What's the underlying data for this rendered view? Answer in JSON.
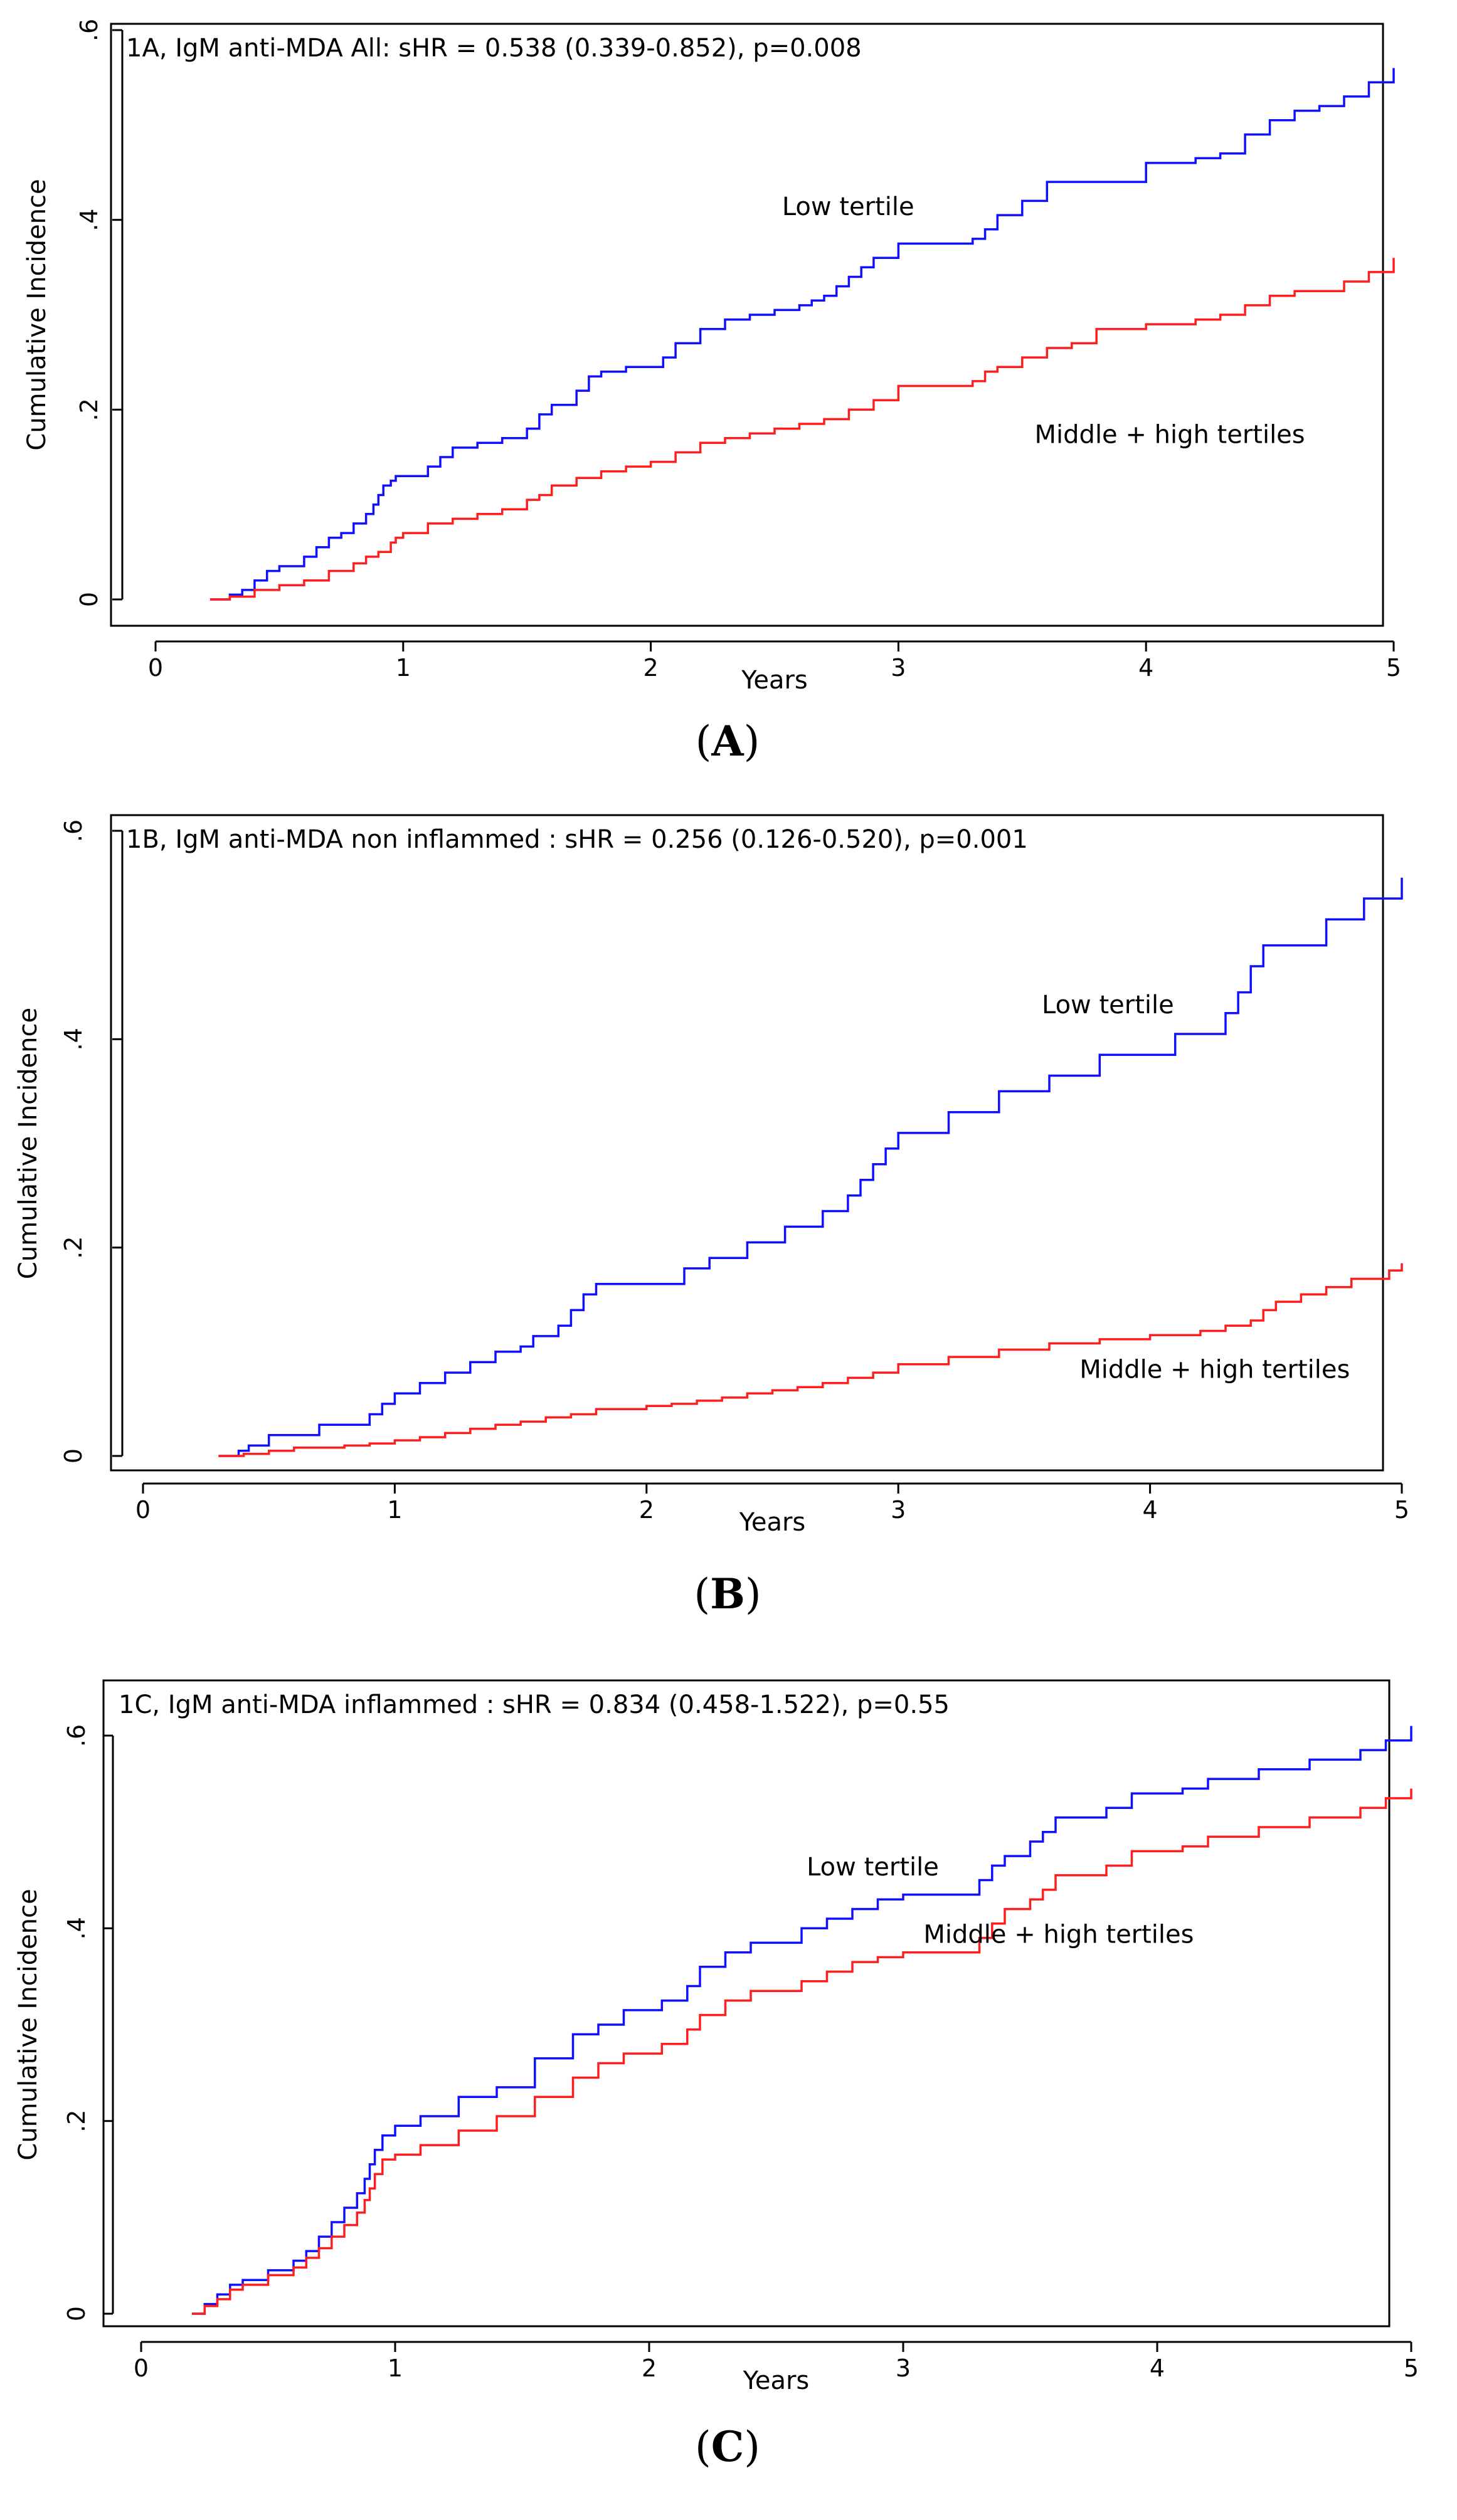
{
  "chart_data": [
    {
      "type": "line",
      "panel": "A",
      "caption_open": "(",
      "caption_letter": "A",
      "caption_close": ")",
      "title": "1A, IgM anti-MDA All: sHR = 0.538 (0.339-0.852), p=0.008",
      "xlabel": "Years",
      "ylabel": "Cumulative Incidence",
      "xlim": [
        0,
        5
      ],
      "ylim": [
        0,
        0.6
      ],
      "xticks": [
        0,
        1,
        2,
        3,
        4,
        5
      ],
      "xtick_labels": [
        "0",
        "1",
        "2",
        "3",
        "4",
        "5"
      ],
      "yticks": [
        0,
        0.2,
        0.4,
        0.6
      ],
      "ytick_labels": [
        "0",
        ".2",
        ".4",
        ".6"
      ],
      "series": [
        {
          "name": "Low tertile",
          "color": "#1010ff",
          "label_at": [
            2.53,
            0.405
          ],
          "x": [
            0.22,
            0.3,
            0.35,
            0.4,
            0.45,
            0.5,
            0.6,
            0.65,
            0.7,
            0.75,
            0.8,
            0.85,
            0.88,
            0.9,
            0.92,
            0.95,
            0.97,
            1.0,
            1.1,
            1.15,
            1.2,
            1.25,
            1.3,
            1.4,
            1.5,
            1.55,
            1.6,
            1.7,
            1.75,
            1.8,
            1.9,
            2.05,
            2.1,
            2.2,
            2.3,
            2.4,
            2.5,
            2.6,
            2.65,
            2.7,
            2.75,
            2.8,
            2.85,
            2.9,
            3.0,
            3.3,
            3.35,
            3.4,
            3.5,
            3.6,
            3.8,
            4.0,
            4.1,
            4.2,
            4.3,
            4.4,
            4.5,
            4.6,
            4.7,
            4.8,
            4.9,
            5.0
          ],
          "y": [
            0.0,
            0.005,
            0.01,
            0.02,
            0.03,
            0.035,
            0.045,
            0.055,
            0.065,
            0.07,
            0.08,
            0.09,
            0.1,
            0.11,
            0.12,
            0.125,
            0.13,
            0.13,
            0.14,
            0.15,
            0.16,
            0.16,
            0.165,
            0.17,
            0.18,
            0.195,
            0.205,
            0.22,
            0.235,
            0.24,
            0.245,
            0.255,
            0.27,
            0.285,
            0.295,
            0.3,
            0.305,
            0.31,
            0.315,
            0.32,
            0.33,
            0.34,
            0.35,
            0.36,
            0.375,
            0.38,
            0.39,
            0.405,
            0.42,
            0.44,
            0.44,
            0.46,
            0.46,
            0.465,
            0.47,
            0.49,
            0.505,
            0.515,
            0.52,
            0.53,
            0.545,
            0.56
          ]
        },
        {
          "name": "Middle + high tertiles",
          "color": "#ff1e1e",
          "label_at": [
            3.55,
            0.165
          ],
          "x": [
            0.22,
            0.3,
            0.4,
            0.5,
            0.6,
            0.7,
            0.8,
            0.85,
            0.9,
            0.95,
            0.97,
            1.0,
            1.1,
            1.2,
            1.3,
            1.4,
            1.5,
            1.55,
            1.6,
            1.7,
            1.8,
            1.9,
            2.0,
            2.1,
            2.2,
            2.3,
            2.4,
            2.5,
            2.6,
            2.7,
            2.8,
            2.9,
            3.0,
            3.3,
            3.35,
            3.4,
            3.5,
            3.6,
            3.7,
            3.8,
            4.0,
            4.2,
            4.3,
            4.4,
            4.5,
            4.6,
            4.8,
            4.9,
            5.0
          ],
          "y": [
            0.0,
            0.003,
            0.01,
            0.015,
            0.02,
            0.03,
            0.038,
            0.045,
            0.05,
            0.06,
            0.065,
            0.07,
            0.08,
            0.085,
            0.09,
            0.095,
            0.105,
            0.11,
            0.12,
            0.128,
            0.135,
            0.14,
            0.145,
            0.155,
            0.165,
            0.17,
            0.175,
            0.18,
            0.185,
            0.19,
            0.2,
            0.21,
            0.225,
            0.23,
            0.24,
            0.245,
            0.255,
            0.265,
            0.27,
            0.285,
            0.29,
            0.295,
            0.3,
            0.31,
            0.32,
            0.325,
            0.335,
            0.345,
            0.36
          ]
        }
      ]
    },
    {
      "type": "line",
      "panel": "B",
      "caption_open": "(",
      "caption_letter": "B",
      "caption_close": ")",
      "title": "1B, IgM anti-MDA non inflammed : sHR = 0.256 (0.126-0.520), p=0.001",
      "xlabel": "Years",
      "ylabel": "Cumulative Incidence",
      "xlim": [
        0,
        5
      ],
      "ylim": [
        0,
        0.6
      ],
      "xticks": [
        0,
        1,
        2,
        3,
        4,
        5
      ],
      "xtick_labels": [
        "0",
        "1",
        "2",
        "3",
        "4",
        "5"
      ],
      "yticks": [
        0,
        0.2,
        0.4,
        0.6
      ],
      "ytick_labels": [
        "0",
        ".2",
        ".4",
        ".6"
      ],
      "series": [
        {
          "name": "Low tertile",
          "color": "#1010ff",
          "label_at": [
            3.57,
            0.425
          ],
          "x": [
            0.3,
            0.38,
            0.42,
            0.5,
            0.6,
            0.7,
            0.9,
            0.95,
            1.0,
            1.1,
            1.2,
            1.3,
            1.4,
            1.5,
            1.55,
            1.65,
            1.7,
            1.75,
            1.8,
            2.0,
            2.15,
            2.25,
            2.4,
            2.55,
            2.7,
            2.8,
            2.85,
            2.9,
            2.95,
            3.0,
            3.2,
            3.4,
            3.6,
            3.8,
            4.1,
            4.15,
            4.3,
            4.35,
            4.4,
            4.45,
            4.5,
            4.7,
            4.85,
            5.0
          ],
          "y": [
            0.0,
            0.005,
            0.01,
            0.02,
            0.02,
            0.03,
            0.04,
            0.05,
            0.06,
            0.07,
            0.08,
            0.09,
            0.1,
            0.105,
            0.115,
            0.125,
            0.14,
            0.155,
            0.165,
            0.165,
            0.18,
            0.19,
            0.205,
            0.22,
            0.235,
            0.25,
            0.265,
            0.28,
            0.295,
            0.31,
            0.33,
            0.35,
            0.365,
            0.385,
            0.405,
            0.405,
            0.425,
            0.445,
            0.47,
            0.49,
            0.49,
            0.515,
            0.535,
            0.555
          ]
        },
        {
          "name": "Middle + high tertiles",
          "color": "#ff1e1e",
          "label_at": [
            3.72,
            0.075
          ],
          "x": [
            0.3,
            0.4,
            0.5,
            0.6,
            0.8,
            0.9,
            1.0,
            1.1,
            1.2,
            1.3,
            1.4,
            1.5,
            1.6,
            1.7,
            1.8,
            2.0,
            2.1,
            2.2,
            2.3,
            2.4,
            2.5,
            2.6,
            2.7,
            2.8,
            2.9,
            3.0,
            3.2,
            3.4,
            3.6,
            3.8,
            4.0,
            4.2,
            4.3,
            4.4,
            4.45,
            4.5,
            4.6,
            4.7,
            4.8,
            4.95,
            5.0
          ],
          "y": [
            0.0,
            0.002,
            0.005,
            0.008,
            0.01,
            0.012,
            0.015,
            0.018,
            0.022,
            0.026,
            0.03,
            0.033,
            0.037,
            0.04,
            0.045,
            0.048,
            0.05,
            0.053,
            0.056,
            0.06,
            0.063,
            0.066,
            0.07,
            0.075,
            0.08,
            0.088,
            0.095,
            0.102,
            0.108,
            0.112,
            0.116,
            0.12,
            0.125,
            0.13,
            0.14,
            0.148,
            0.155,
            0.162,
            0.17,
            0.178,
            0.185
          ]
        }
      ]
    },
    {
      "type": "line",
      "panel": "C",
      "caption_open": "(",
      "caption_letter": "C",
      "caption_close": ")",
      "title": "1C, IgM anti-MDA inflammed : sHR = 0.834 (0.458-1.522), p=0.55",
      "xlabel": "Years",
      "ylabel": "Cumulative Incidence",
      "xlim": [
        0,
        5
      ],
      "ylim": [
        0,
        0.6
      ],
      "xticks": [
        0,
        1,
        2,
        3,
        4,
        5
      ],
      "xtick_labels": [
        "0",
        "1",
        "2",
        "3",
        "4",
        "5"
      ],
      "yticks": [
        0,
        0.2,
        0.4,
        0.6
      ],
      "ytick_labels": [
        "0",
        ".2",
        ".4",
        ".6"
      ],
      "series": [
        {
          "name": "Low tertile",
          "color": "#1010ff",
          "label_at": [
            2.62,
            0.455
          ],
          "x": [
            0.2,
            0.25,
            0.3,
            0.35,
            0.4,
            0.5,
            0.6,
            0.65,
            0.7,
            0.75,
            0.8,
            0.85,
            0.88,
            0.9,
            0.92,
            0.95,
            1.0,
            1.1,
            1.25,
            1.4,
            1.55,
            1.7,
            1.8,
            1.9,
            2.05,
            2.15,
            2.2,
            2.3,
            2.4,
            2.6,
            2.7,
            2.8,
            2.9,
            3.0,
            3.3,
            3.35,
            3.4,
            3.5,
            3.55,
            3.6,
            3.8,
            3.9,
            4.1,
            4.2,
            4.4,
            4.6,
            4.8,
            4.9,
            5.0
          ],
          "y": [
            0.0,
            0.01,
            0.02,
            0.03,
            0.035,
            0.045,
            0.055,
            0.065,
            0.08,
            0.095,
            0.11,
            0.125,
            0.14,
            0.155,
            0.17,
            0.185,
            0.195,
            0.205,
            0.225,
            0.235,
            0.265,
            0.29,
            0.3,
            0.315,
            0.325,
            0.34,
            0.36,
            0.375,
            0.385,
            0.4,
            0.41,
            0.42,
            0.43,
            0.435,
            0.45,
            0.465,
            0.475,
            0.49,
            0.5,
            0.515,
            0.525,
            0.54,
            0.545,
            0.555,
            0.565,
            0.575,
            0.585,
            0.595,
            0.61
          ]
        },
        {
          "name": "Middle + high tertiles",
          "color": "#ff1e1e",
          "label_at": [
            3.08,
            0.385
          ],
          "x": [
            0.2,
            0.25,
            0.3,
            0.35,
            0.4,
            0.5,
            0.6,
            0.65,
            0.7,
            0.75,
            0.8,
            0.85,
            0.88,
            0.9,
            0.92,
            0.95,
            1.0,
            1.1,
            1.25,
            1.4,
            1.55,
            1.7,
            1.8,
            1.9,
            2.05,
            2.15,
            2.2,
            2.3,
            2.4,
            2.6,
            2.7,
            2.8,
            2.9,
            3.0,
            3.3,
            3.35,
            3.4,
            3.5,
            3.55,
            3.6,
            3.8,
            3.9,
            4.1,
            4.2,
            4.4,
            4.6,
            4.8,
            4.9,
            5.0
          ],
          "y": [
            0.0,
            0.008,
            0.015,
            0.025,
            0.03,
            0.04,
            0.048,
            0.058,
            0.068,
            0.08,
            0.092,
            0.105,
            0.118,
            0.13,
            0.145,
            0.16,
            0.165,
            0.175,
            0.19,
            0.205,
            0.225,
            0.245,
            0.26,
            0.27,
            0.28,
            0.295,
            0.31,
            0.325,
            0.335,
            0.345,
            0.355,
            0.365,
            0.37,
            0.375,
            0.39,
            0.405,
            0.42,
            0.43,
            0.44,
            0.455,
            0.465,
            0.48,
            0.485,
            0.495,
            0.505,
            0.515,
            0.525,
            0.535,
            0.545
          ]
        }
      ]
    }
  ]
}
